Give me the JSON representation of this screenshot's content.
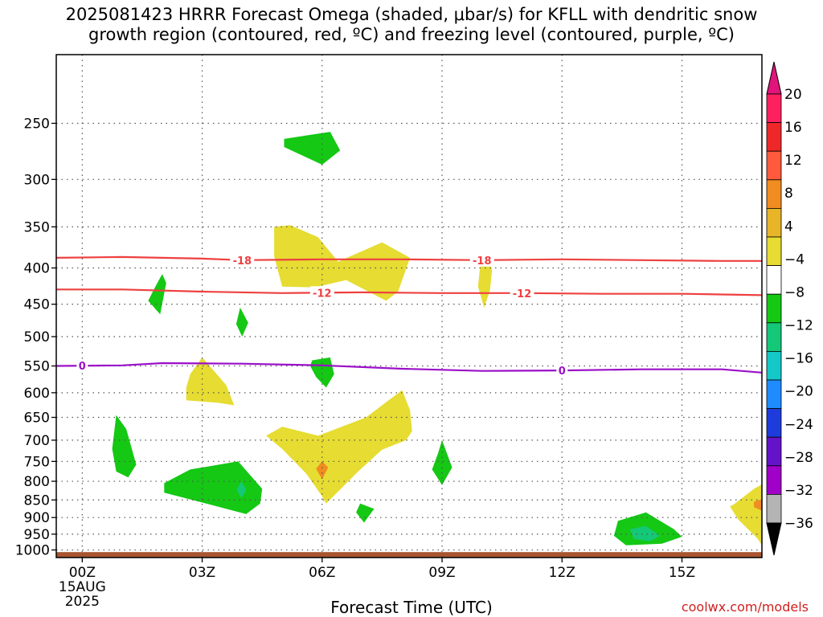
{
  "title": {
    "line1": "2025081423 HRRR Forecast Omega (shaded, μbar/s) for KFLL with dendritic snow",
    "line2": "growth region (contoured, red, ºC) and freezing level (contoured, purple, ºC)"
  },
  "chart_data": {
    "type": "time-height cross section",
    "xlabel": "Forecast Time (UTC)",
    "ylabel": "",
    "x_ticks": [
      "00Z",
      "03Z",
      "06Z",
      "09Z",
      "12Z",
      "15Z"
    ],
    "x_tick_hours": [
      0,
      3,
      6,
      9,
      12,
      15
    ],
    "x_start_labels": [
      "15AUG",
      "2025"
    ],
    "xlim": [
      -0.65,
      17
    ],
    "y_ticks": [
      250,
      300,
      350,
      400,
      450,
      500,
      550,
      600,
      650,
      700,
      750,
      800,
      850,
      900,
      950,
      1000
    ],
    "ylim": [
      1025,
      200
    ],
    "y_scale": "log-pressure",
    "grid": true,
    "colorbar": {
      "labels": [
        "20",
        "16",
        "12",
        "8",
        "4",
        "−4",
        "−8",
        "−12",
        "−16",
        "−20",
        "−24",
        "−28",
        "−32",
        "−36"
      ],
      "bins": [
        {
          "color": "#ff2060",
          "range": [
            20,
            24
          ]
        },
        {
          "color": "#ee2828",
          "range": [
            16,
            20
          ]
        },
        {
          "color": "#ff5a3c",
          "range": [
            12,
            16
          ]
        },
        {
          "color": "#f08c20",
          "range": [
            8,
            12
          ]
        },
        {
          "color": "#e8b428",
          "range": [
            4,
            8
          ]
        },
        {
          "color": "#e6dc32",
          "range": [
            0,
            4
          ]
        },
        {
          "color": "#ffffff",
          "range": [
            -4,
            0
          ]
        },
        {
          "color": "#14c814",
          "range": [
            -8,
            -4
          ]
        },
        {
          "color": "#14c878",
          "range": [
            -12,
            -8
          ]
        },
        {
          "color": "#14c8c8",
          "range": [
            -16,
            -12
          ]
        },
        {
          "color": "#1e8cff",
          "range": [
            -20,
            -16
          ]
        },
        {
          "color": "#1e3cdc",
          "range": [
            -24,
            -20
          ]
        },
        {
          "color": "#6414c8",
          "range": [
            -28,
            -24
          ]
        },
        {
          "color": "#a000c8",
          "range": [
            -32,
            -28
          ]
        },
        {
          "color": "#b4b4b4",
          "range": [
            -36,
            -32
          ]
        }
      ],
      "max_arrow_color": "#e0147a",
      "min_arrow_color": "#000000"
    },
    "contours": [
      {
        "name": "-18 ºC",
        "label": "-18",
        "color": "#ee4040",
        "hours": [
          -0.65,
          1,
          3,
          4,
          6,
          8,
          10,
          12,
          14,
          16,
          17
        ],
        "pressure": [
          387,
          386,
          388,
          390,
          389,
          389,
          390,
          389,
          390,
          391,
          391
        ],
        "label_hours": [
          4.0,
          10.0
        ]
      },
      {
        "name": "-12 ºC",
        "label": "-12",
        "color": "#ee4040",
        "hours": [
          -0.65,
          1,
          3,
          5,
          7,
          9,
          11,
          13,
          15,
          17
        ],
        "pressure": [
          429,
          429,
          432,
          434,
          433,
          434,
          434,
          435,
          435,
          437
        ],
        "label_hours": [
          6.0,
          11.0
        ]
      },
      {
        "name": "0 ºC",
        "label": "0",
        "color": "#9a10c8",
        "hours": [
          -0.65,
          1,
          2,
          4,
          6,
          8,
          10,
          12,
          14,
          16,
          17
        ],
        "pressure": [
          550,
          549,
          545,
          546,
          549,
          555,
          559,
          558,
          556,
          556,
          562
        ],
        "label_hours": [
          0.0,
          12.0
        ]
      }
    ],
    "omega_regions": [
      {
        "level": "-8 to -4",
        "color": "#14c814",
        "hours": [
          5.05,
          6.2,
          6.45,
          6.0,
          5.05
        ],
        "pressure": [
          263,
          257,
          273,
          286,
          270
        ]
      },
      {
        "level": "0 to 4",
        "color": "#e6dc32",
        "hours": [
          4.8,
          5.2,
          5.9,
          6.4,
          7.5,
          8.2,
          7.9,
          7.6,
          6.6,
          5.8,
          5.0,
          4.8
        ],
        "pressure": [
          350,
          348,
          362,
          392,
          368,
          387,
          432,
          445,
          416,
          426,
          425,
          385
        ]
      },
      {
        "level": "0 to 4",
        "color": "#e6dc32",
        "hours": [
          9.95,
          10.1,
          10.25,
          10.2,
          10.05,
          9.9,
          9.95
        ],
        "pressure": [
          398,
          385,
          402,
          430,
          455,
          425,
          398
        ]
      },
      {
        "level": "-8 to -4",
        "color": "#14c814",
        "hours": [
          2.0,
          2.1,
          1.95,
          1.65,
          1.8,
          2.0
        ],
        "pressure": [
          408,
          420,
          465,
          445,
          428,
          408
        ]
      },
      {
        "level": "-8 to -4",
        "color": "#14c814",
        "hours": [
          3.95,
          4.15,
          4.0,
          3.85,
          3.95
        ],
        "pressure": [
          455,
          478,
          500,
          480,
          455
        ]
      },
      {
        "level": "-8 to -4",
        "color": "#14c814",
        "hours": [
          5.75,
          6.2,
          6.3,
          6.1,
          5.85,
          5.7,
          5.75
        ],
        "pressure": [
          540,
          535,
          565,
          590,
          570,
          550,
          540
        ]
      },
      {
        "level": "0 to 4",
        "color": "#e6dc32",
        "hours": [
          2.7,
          3.0,
          3.6,
          3.8,
          3.4,
          2.6,
          2.6,
          2.7
        ],
        "pressure": [
          565,
          535,
          585,
          625,
          620,
          615,
          590,
          565
        ]
      },
      {
        "level": "0 to 4",
        "color": "#e6dc32",
        "hours": [
          4.6,
          5.0,
          5.9,
          7.1,
          8.0,
          8.2,
          8.25,
          8.1,
          7.5,
          6.9,
          6.1,
          6.0,
          5.6,
          5.0,
          4.6
        ],
        "pressure": [
          690,
          670,
          690,
          650,
          595,
          635,
          680,
          700,
          722,
          775,
          860,
          840,
          780,
          720,
          690
        ]
      },
      {
        "level": "8 to 12",
        "color": "#f08c20",
        "hours": [
          6.0,
          6.15,
          6.0,
          5.85,
          6.0
        ],
        "pressure": [
          750,
          765,
          795,
          768,
          750
        ]
      },
      {
        "level": "-8 to -4",
        "color": "#14c814",
        "hours": [
          0.85,
          1.1,
          1.35,
          1.15,
          0.85,
          0.75,
          0.85
        ],
        "pressure": [
          645,
          675,
          758,
          790,
          775,
          720,
          645
        ]
      },
      {
        "level": "-8 to -4",
        "color": "#14c814",
        "hours": [
          9.0,
          9.25,
          9.0,
          8.75,
          8.9,
          9.0
        ],
        "pressure": [
          700,
          765,
          810,
          770,
          730,
          700
        ]
      },
      {
        "level": "-8 to -4",
        "color": "#14c814",
        "hours": [
          2.05,
          2.7,
          3.9,
          4.5,
          4.45,
          4.1,
          3.1,
          2.05,
          2.05
        ],
        "pressure": [
          805,
          770,
          750,
          820,
          860,
          890,
          860,
          830,
          805
        ]
      },
      {
        "level": "-12 to -8",
        "color": "#14c878",
        "hours": [
          3.98,
          4.1,
          3.98,
          3.86,
          3.98
        ],
        "pressure": [
          800,
          822,
          845,
          822,
          800
        ]
      },
      {
        "level": "-8 to -4",
        "color": "#14c814",
        "hours": [
          6.95,
          7.3,
          7.05,
          6.85,
          6.95
        ],
        "pressure": [
          860,
          875,
          915,
          885,
          860
        ]
      },
      {
        "level": "-8 to -4",
        "color": "#14c814",
        "hours": [
          13.4,
          14.1,
          14.8,
          15.0,
          14.5,
          13.6,
          13.3,
          13.4
        ],
        "pressure": [
          910,
          885,
          935,
          958,
          980,
          985,
          955,
          910
        ]
      },
      {
        "level": "-12 to -8",
        "color": "#14c878",
        "hours": [
          13.7,
          14.1,
          14.45,
          14.2,
          13.8,
          13.7
        ],
        "pressure": [
          935,
          925,
          955,
          972,
          965,
          935
        ]
      },
      {
        "level": "0 to 4",
        "color": "#e6dc32",
        "hours": [
          16.3,
          16.8,
          17.0,
          17.0,
          16.9,
          16.4,
          16.2,
          16.3
        ],
        "pressure": [
          862,
          820,
          808,
          985,
          965,
          905,
          868,
          862
        ]
      },
      {
        "level": "8 to 12",
        "color": "#f08c20",
        "hours": [
          16.8,
          17.0,
          17.0,
          16.8
        ],
        "pressure": [
          855,
          848,
          880,
          870
        ]
      }
    ],
    "ground_color": "#a85530",
    "ground_pressure_top": 1007
  },
  "credit": "coolwx.com/models"
}
